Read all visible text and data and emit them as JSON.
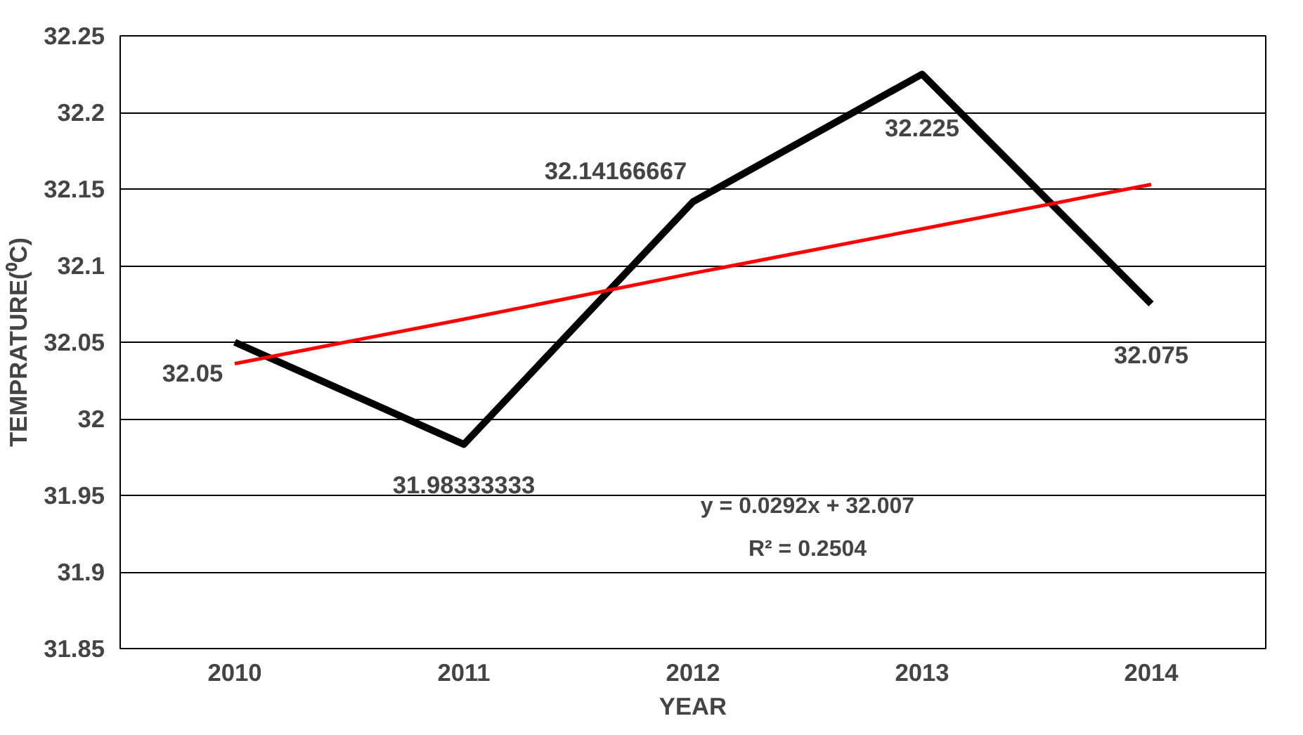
{
  "chart_data": {
    "type": "line",
    "xlabel": "YEAR",
    "ylabel": "TEMPRATURE(⁰C)",
    "categories": [
      "2010",
      "2011",
      "2012",
      "2013",
      "2014"
    ],
    "series": [
      {
        "color": "#000000",
        "values": [
          32.05,
          31.98333333,
          32.14166667,
          32.225,
          32.075
        ],
        "value_labels": [
          "32.05",
          "31.98333333",
          "32.14166667",
          "32.225",
          "32.075"
        ]
      },
      {
        "type": "line",
        "color": "#ff0000",
        "values": [
          32.036,
          32.065,
          32.095,
          32.124,
          32.153
        ]
      }
    ],
    "annotations": [
      "y = 0.0292x + 32.007",
      "R² = 0.2504"
    ],
    "ylim": [
      31.85,
      32.25
    ],
    "yticks": [
      31.85,
      31.9,
      31.95,
      32,
      32.05,
      32.1,
      32.15,
      32.2,
      32.25
    ],
    "grid": "y",
    "marker": "none",
    "line_style": "solid"
  }
}
